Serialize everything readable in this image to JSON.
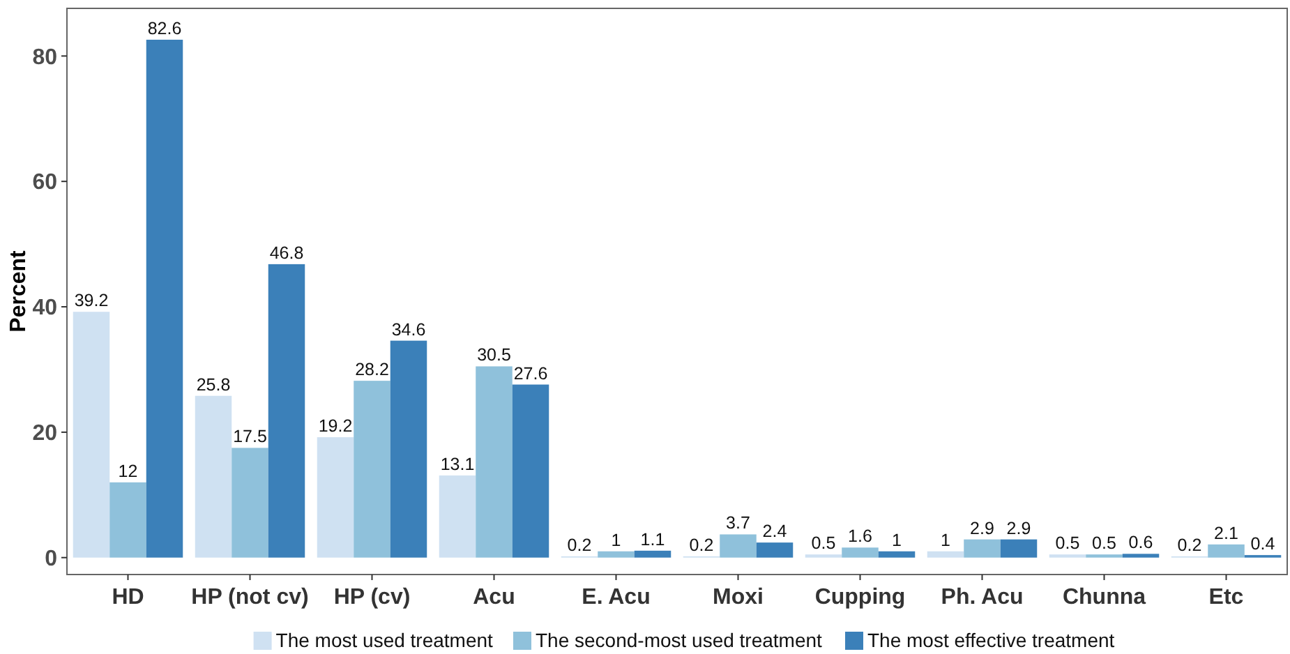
{
  "chart_data": {
    "type": "bar",
    "ylabel": "Percent",
    "categories": [
      "HD",
      "HP (not cv)",
      "HP (cv)",
      "Acu",
      "E. Acu",
      "Moxi",
      "Cupping",
      "Ph. Acu",
      "Chunna",
      "Etc"
    ],
    "series": [
      {
        "name": "The most used treatment",
        "color": "#cfe1f2",
        "values": [
          39.2,
          25.8,
          19.2,
          13.1,
          0.2,
          0.2,
          0.5,
          1,
          0.5,
          0.2
        ]
      },
      {
        "name": "The second-most used treatment",
        "color": "#8fc1db",
        "values": [
          12,
          17.5,
          28.2,
          30.5,
          1,
          3.7,
          1.6,
          2.9,
          0.5,
          2.1
        ]
      },
      {
        "name": "The most effective treatment",
        "color": "#3b80b9",
        "values": [
          82.6,
          46.8,
          34.6,
          27.6,
          1.1,
          2.4,
          1,
          2.9,
          0.6,
          0.4
        ]
      }
    ],
    "ylim": [
      -2.7,
      87.6
    ],
    "yticks": [
      0,
      20,
      40,
      60,
      80
    ],
    "data_labels": true,
    "grid": false,
    "legend": "bottom"
  }
}
